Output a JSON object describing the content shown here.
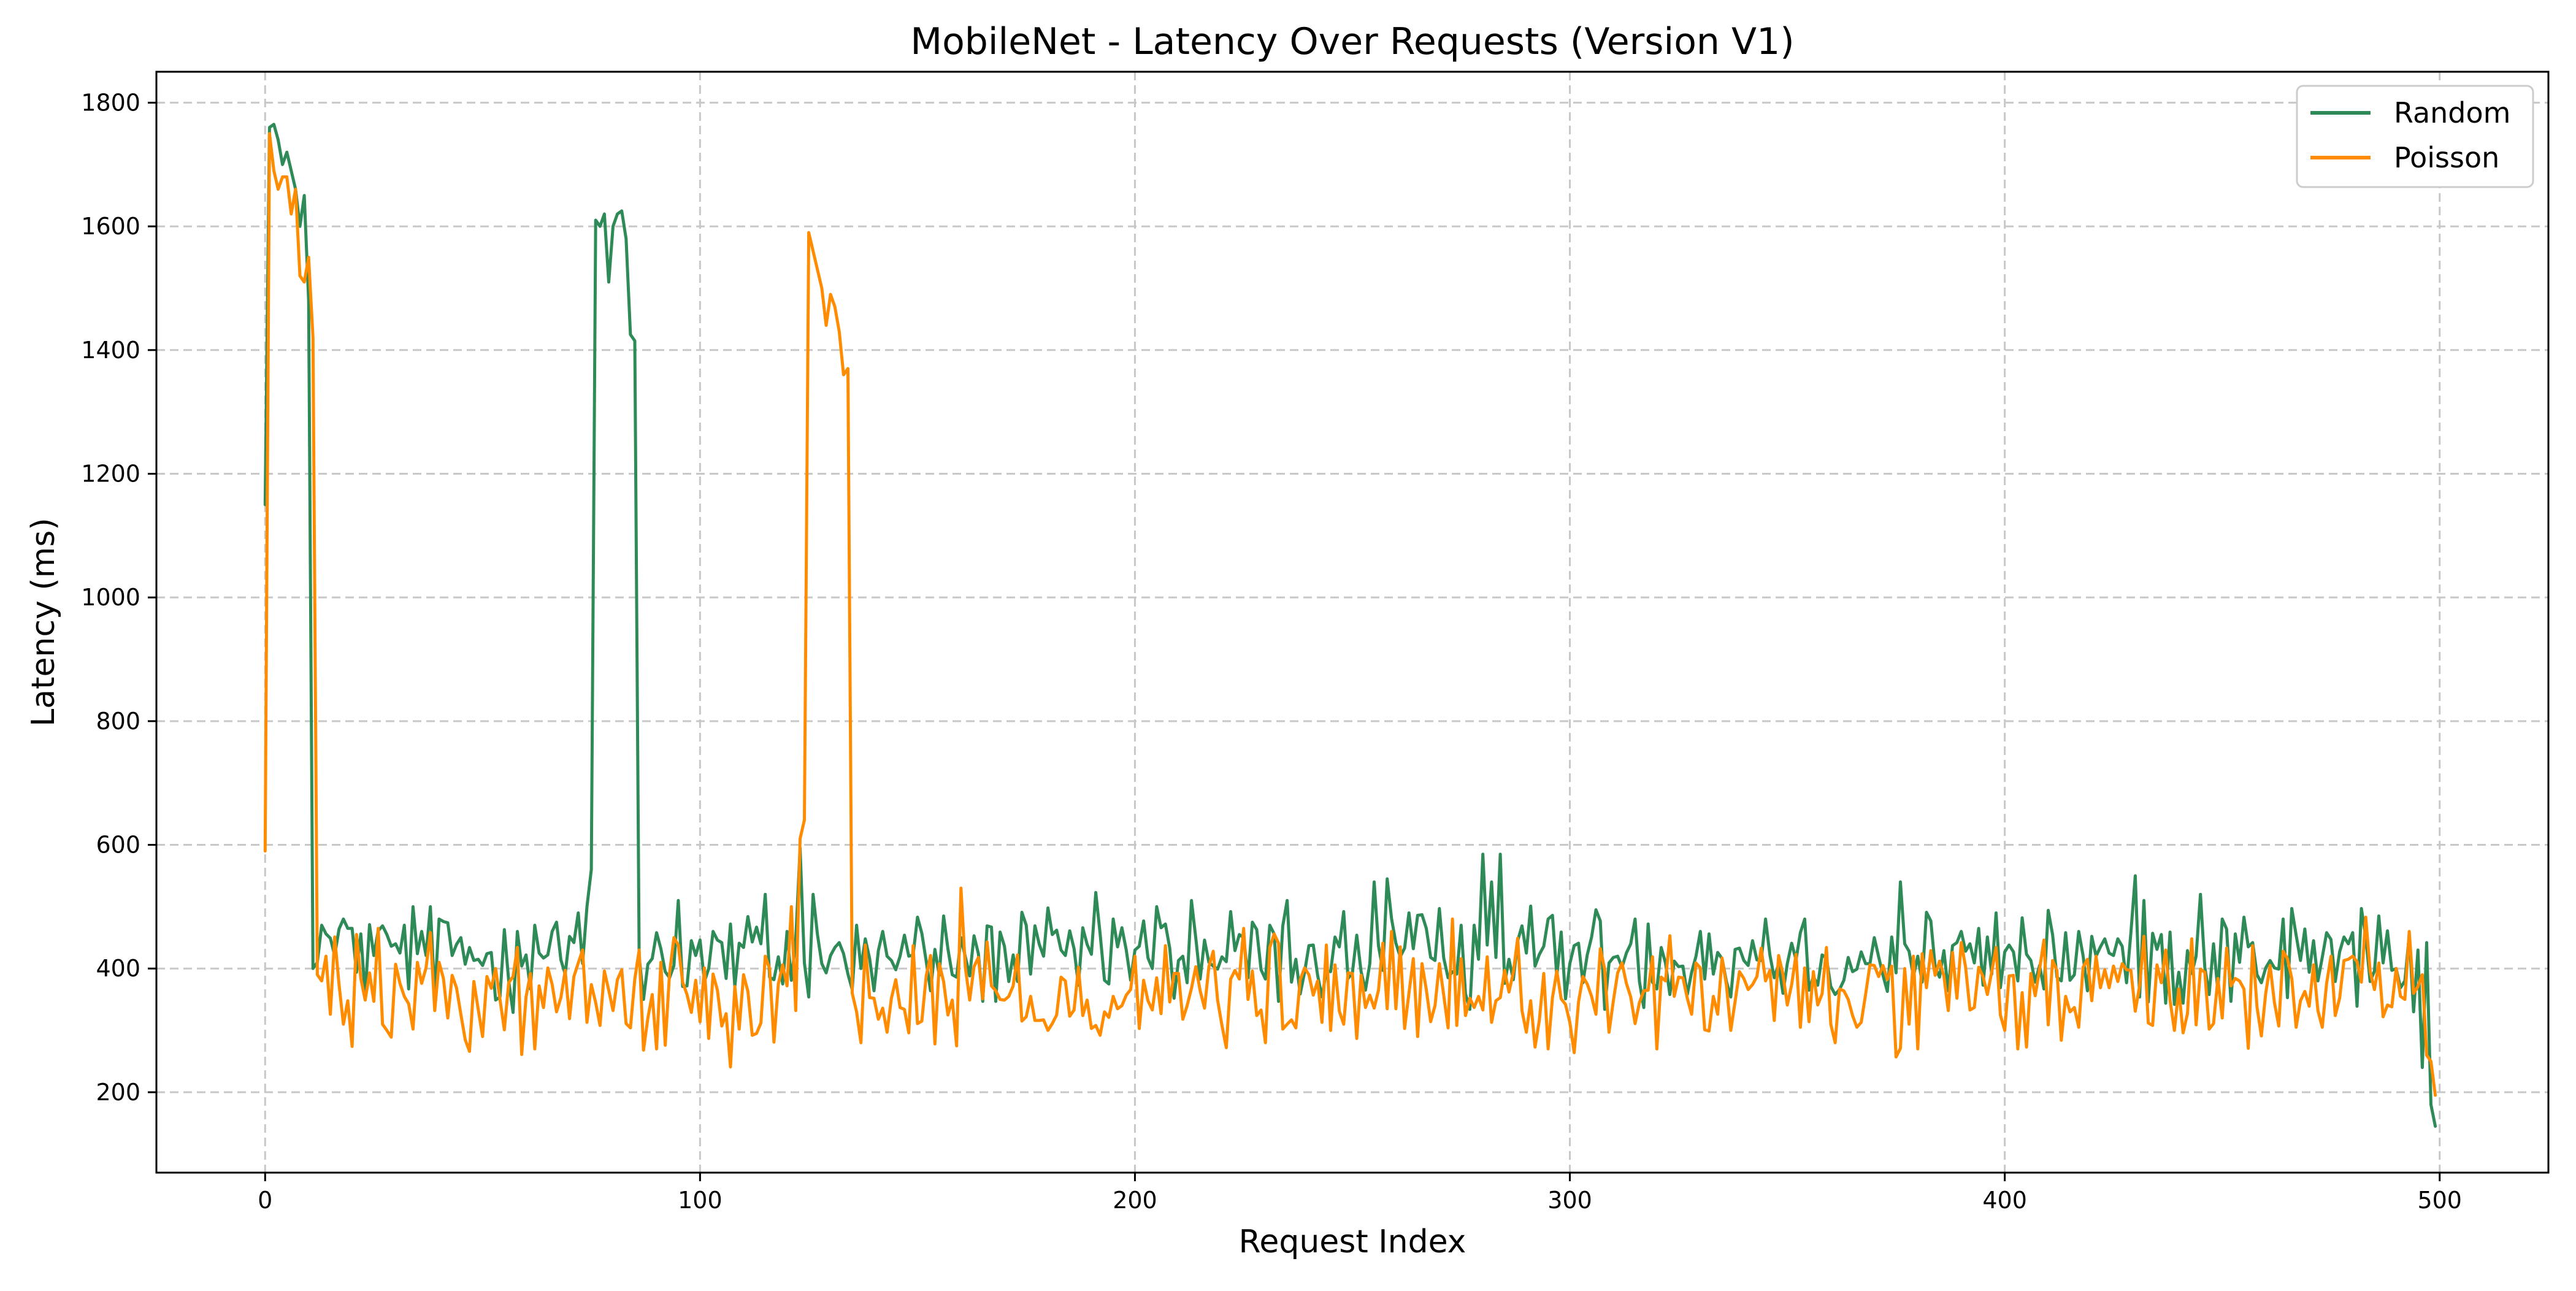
{
  "chart_data": {
    "type": "line",
    "title": "MobileNet - Latency Over Requests (Version V1)",
    "xlabel": "Request Index",
    "ylabel": "Latency (ms)",
    "xlim": [
      -25,
      525
    ],
    "ylim": [
      70,
      1850
    ],
    "xticks": [
      0,
      100,
      200,
      300,
      400,
      500
    ],
    "yticks": [
      200,
      400,
      600,
      800,
      1000,
      1200,
      1400,
      1600,
      1800
    ],
    "grid": true,
    "legend": "top-right",
    "series": [
      {
        "name": "Random",
        "color": "#2e8b57",
        "base": 420,
        "amp": 40,
        "spikes": [
          [
            0,
            1150
          ],
          [
            1,
            1760
          ],
          [
            2,
            1765
          ],
          [
            3,
            1740
          ],
          [
            4,
            1700
          ],
          [
            5,
            1720
          ],
          [
            6,
            1690
          ],
          [
            7,
            1660
          ],
          [
            8,
            1600
          ],
          [
            9,
            1650
          ],
          [
            10,
            1480
          ],
          [
            11,
            400
          ],
          [
            12,
            410
          ],
          [
            13,
            470
          ],
          [
            18,
            480
          ],
          [
            30,
            440
          ],
          [
            32,
            470
          ],
          [
            34,
            500
          ],
          [
            36,
            460
          ],
          [
            40,
            480
          ],
          [
            58,
            460
          ],
          [
            62,
            470
          ],
          [
            66,
            460
          ],
          [
            72,
            490
          ],
          [
            74,
            500
          ],
          [
            75,
            560
          ],
          [
            76,
            1610
          ],
          [
            77,
            1600
          ],
          [
            78,
            1620
          ],
          [
            79,
            1510
          ],
          [
            80,
            1600
          ],
          [
            81,
            1620
          ],
          [
            82,
            1625
          ],
          [
            83,
            1580
          ],
          [
            84,
            1425
          ],
          [
            85,
            1415
          ],
          [
            86,
            420
          ],
          [
            87,
            350
          ],
          [
            95,
            510
          ],
          [
            115,
            520
          ],
          [
            123,
            595
          ],
          [
            126,
            520
          ],
          [
            136,
            470
          ],
          [
            160,
            450
          ],
          [
            175,
            470
          ],
          [
            195,
            480
          ],
          [
            205,
            500
          ],
          [
            213,
            510
          ],
          [
            235,
            510
          ],
          [
            255,
            540
          ],
          [
            258,
            545
          ],
          [
            275,
            470
          ],
          [
            280,
            585
          ],
          [
            282,
            540
          ],
          [
            284,
            585
          ],
          [
            295,
            480
          ],
          [
            315,
            480
          ],
          [
            330,
            460
          ],
          [
            345,
            480
          ],
          [
            370,
            450
          ],
          [
            376,
            540
          ],
          [
            390,
            460
          ],
          [
            398,
            490
          ],
          [
            430,
            550
          ],
          [
            432,
            510
          ],
          [
            445,
            520
          ],
          [
            450,
            480
          ],
          [
            464,
            480
          ],
          [
            486,
            485
          ],
          [
            490,
            400
          ],
          [
            492,
            380
          ],
          [
            494,
            330
          ],
          [
            496,
            240
          ],
          [
            498,
            180
          ],
          [
            499,
            145
          ]
        ],
        "y": []
      },
      {
        "name": "Poisson",
        "color": "#ff8c00",
        "base": 360,
        "amp": 45,
        "spikes": [
          [
            0,
            590
          ],
          [
            1,
            1750
          ],
          [
            2,
            1690
          ],
          [
            3,
            1660
          ],
          [
            4,
            1680
          ],
          [
            5,
            1680
          ],
          [
            6,
            1620
          ],
          [
            7,
            1660
          ],
          [
            8,
            1520
          ],
          [
            9,
            1510
          ],
          [
            10,
            1550
          ],
          [
            11,
            1420
          ],
          [
            12,
            390
          ],
          [
            13,
            380
          ],
          [
            14,
            420
          ],
          [
            18,
            310
          ],
          [
            28,
            300
          ],
          [
            40,
            410
          ],
          [
            50,
            290
          ],
          [
            62,
            270
          ],
          [
            73,
            430
          ],
          [
            86,
            430
          ],
          [
            90,
            270
          ],
          [
            115,
            420
          ],
          [
            121,
            500
          ],
          [
            123,
            610
          ],
          [
            124,
            640
          ],
          [
            125,
            1590
          ],
          [
            126,
            1560
          ],
          [
            127,
            1530
          ],
          [
            128,
            1500
          ],
          [
            129,
            1440
          ],
          [
            130,
            1490
          ],
          [
            131,
            1470
          ],
          [
            132,
            1430
          ],
          [
            133,
            1360
          ],
          [
            134,
            1370
          ],
          [
            135,
            360
          ],
          [
            136,
            330
          ],
          [
            137,
            280
          ],
          [
            160,
            530
          ],
          [
            180,
            300
          ],
          [
            200,
            420
          ],
          [
            235,
            310
          ],
          [
            245,
            300
          ],
          [
            265,
            290
          ],
          [
            273,
            480
          ],
          [
            295,
            270
          ],
          [
            320,
            270
          ],
          [
            360,
            310
          ],
          [
            380,
            270
          ],
          [
            400,
            300
          ],
          [
            450,
            320
          ],
          [
            475,
            420
          ],
          [
            480,
            420
          ],
          [
            490,
            400
          ],
          [
            492,
            350
          ],
          [
            494,
            360
          ],
          [
            496,
            390
          ],
          [
            497,
            260
          ],
          [
            498,
            250
          ],
          [
            499,
            195
          ]
        ],
        "y": []
      }
    ]
  }
}
